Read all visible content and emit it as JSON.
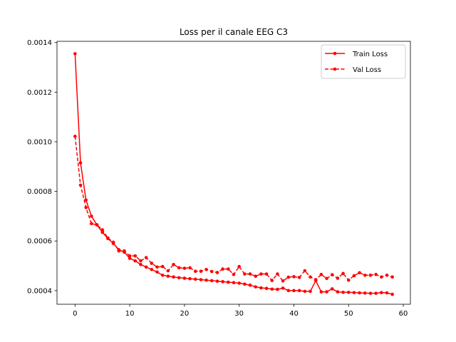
{
  "chart_data": {
    "type": "line",
    "title": "Loss per il canale EEG C3",
    "xlabel": "",
    "ylabel": "",
    "xlim": [
      -3.3,
      61.3
    ],
    "ylim": [
      0.000345,
      0.001405
    ],
    "xticks": [
      0,
      10,
      20,
      30,
      40,
      50,
      60
    ],
    "yticks": [
      0.0004,
      0.0006,
      0.0008,
      0.001,
      0.0012,
      0.0014
    ],
    "ytick_labels": [
      "0.0004",
      "0.0006",
      "0.0008",
      "0.0010",
      "0.0012",
      "0.0014"
    ],
    "grid": false,
    "legend_position": "top-right",
    "x": [
      0,
      1,
      2,
      3,
      4,
      5,
      6,
      7,
      8,
      9,
      10,
      11,
      12,
      13,
      14,
      15,
      16,
      17,
      18,
      19,
      20,
      21,
      22,
      23,
      24,
      25,
      26,
      27,
      28,
      29,
      30,
      31,
      32,
      33,
      34,
      35,
      36,
      37,
      38,
      39,
      40,
      41,
      42,
      43,
      44,
      45,
      46,
      47,
      48,
      49,
      50,
      51,
      52,
      53,
      54,
      55,
      56,
      57,
      58
    ],
    "series": [
      {
        "name": "Train Loss",
        "style": "solid",
        "color": "#ff0000",
        "values": [
          0.001355,
          0.000915,
          0.000765,
          0.0007,
          0.000665,
          0.000635,
          0.00061,
          0.00059,
          0.000565,
          0.000555,
          0.00053,
          0.00052,
          0.000505,
          0.000495,
          0.000485,
          0.000475,
          0.000462,
          0.000458,
          0.000455,
          0.000452,
          0.00045,
          0.000448,
          0.000446,
          0.000444,
          0.000442,
          0.00044,
          0.000438,
          0.000436,
          0.000434,
          0.000432,
          0.00043,
          0.000426,
          0.000422,
          0.000415,
          0.000411,
          0.000409,
          0.000406,
          0.000405,
          0.00041,
          0.0004,
          0.0004,
          0.0004,
          0.000397,
          0.000397,
          0.00044,
          0.000395,
          0.000395,
          0.000407,
          0.000395,
          0.000393,
          0.000393,
          0.000392,
          0.000391,
          0.00039,
          0.000389,
          0.000389,
          0.000392,
          0.000391,
          0.000385
        ]
      },
      {
        "name": "Val Loss",
        "style": "dashed",
        "color": "#ff0000",
        "values": [
          0.001022,
          0.000825,
          0.000735,
          0.00067,
          0.000665,
          0.000645,
          0.000612,
          0.000595,
          0.00056,
          0.00056,
          0.00054,
          0.00054,
          0.00052,
          0.000533,
          0.00051,
          0.000495,
          0.000497,
          0.00048,
          0.000505,
          0.000492,
          0.00049,
          0.000492,
          0.000478,
          0.000478,
          0.000485,
          0.000477,
          0.000473,
          0.000487,
          0.000487,
          0.000465,
          0.000497,
          0.000467,
          0.000467,
          0.000458,
          0.000467,
          0.000467,
          0.000441,
          0.000467,
          0.000439,
          0.000454,
          0.000456,
          0.000453,
          0.00048,
          0.000455,
          0.000444,
          0.000465,
          0.000449,
          0.000464,
          0.00045,
          0.000469,
          0.000442,
          0.00046,
          0.000472,
          0.000462,
          0.000462,
          0.000465,
          0.000455,
          0.000462,
          0.000455
        ]
      }
    ]
  }
}
